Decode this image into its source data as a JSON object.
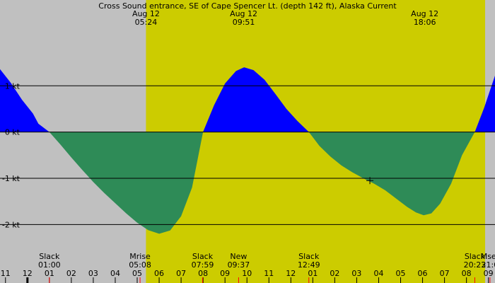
{
  "chart_data": {
    "type": "area",
    "title": "Cross Sound entrance, SE of Cape Spencer Lt. (depth 142 ft), Alaska Current",
    "colors": {
      "night": "#c0c0c0",
      "day": "#cccc00",
      "flood": "#0000ff",
      "ebb": "#2e8b57",
      "grid": "#000000",
      "tick_marker": "#ff0000",
      "midnight_marker": "#000000"
    },
    "xlim": [
      10.75,
      33.3
    ],
    "ylim": [
      -2.5,
      2.55
    ],
    "daylight": {
      "start": 17.4,
      "end": 32.85
    },
    "y_ticks": [
      {
        "value": 1,
        "label": "1 kt"
      },
      {
        "value": 0,
        "label": "0 kt"
      },
      {
        "value": -1,
        "label": "-1 kt"
      },
      {
        "value": -2,
        "label": "-2 kt"
      }
    ],
    "x_tick_labels": [
      {
        "hour": 11,
        "label": "11"
      },
      {
        "hour": 12,
        "label": "12"
      },
      {
        "hour": 13,
        "label": "01"
      },
      {
        "hour": 14,
        "label": "02"
      },
      {
        "hour": 15,
        "label": "03"
      },
      {
        "hour": 16,
        "label": "04"
      },
      {
        "hour": 17,
        "label": "05"
      },
      {
        "hour": 18,
        "label": "06"
      },
      {
        "hour": 19,
        "label": "07"
      },
      {
        "hour": 20,
        "label": "08"
      },
      {
        "hour": 21,
        "label": "09"
      },
      {
        "hour": 22,
        "label": "10"
      },
      {
        "hour": 23,
        "label": "11"
      },
      {
        "hour": 24,
        "label": "12"
      },
      {
        "hour": 25,
        "label": "01"
      },
      {
        "hour": 26,
        "label": "02"
      },
      {
        "hour": 27,
        "label": "03"
      },
      {
        "hour": 28,
        "label": "04"
      },
      {
        "hour": 29,
        "label": "05"
      },
      {
        "hour": 30,
        "label": "06"
      },
      {
        "hour": 31,
        "label": "07"
      },
      {
        "hour": 32,
        "label": "08"
      },
      {
        "hour": 33,
        "label": "09"
      }
    ],
    "top_annotations": [
      {
        "hour": 17.4,
        "line1": "Aug 12",
        "line2": "05:24"
      },
      {
        "hour": 21.85,
        "line1": "Aug 12",
        "line2": "09:51"
      },
      {
        "hour": 30.1,
        "line1": "Aug 12",
        "line2": "18:06"
      }
    ],
    "bottom_annotations": [
      {
        "hour": 13.0,
        "line1": "Slack",
        "line2": "01:00"
      },
      {
        "hour": 17.13,
        "line1": "Mrise",
        "line2": "05:08"
      },
      {
        "hour": 19.98,
        "line1": "Slack",
        "line2": "07:59"
      },
      {
        "hour": 21.62,
        "line1": "New",
        "line2": "09:37"
      },
      {
        "hour": 24.82,
        "line1": "Slack",
        "line2": "12:49"
      },
      {
        "hour": 32.38,
        "line1": "Slack",
        "line2": "20:23"
      },
      {
        "hour": 33.07,
        "line1": "Mset",
        "line2": "21:0"
      }
    ],
    "series": [
      {
        "points": [
          [
            10.75,
            1.36
          ],
          [
            11.25,
            1.06
          ],
          [
            11.75,
            0.7
          ],
          [
            12.25,
            0.4
          ],
          [
            12.5,
            0.18
          ],
          [
            13.0,
            0.0
          ],
          [
            13.5,
            -0.27
          ],
          [
            14.0,
            -0.55
          ],
          [
            14.5,
            -0.82
          ],
          [
            15.0,
            -1.08
          ],
          [
            15.5,
            -1.32
          ],
          [
            16.0,
            -1.54
          ],
          [
            16.5,
            -1.76
          ],
          [
            17.0,
            -1.96
          ],
          [
            17.5,
            -2.12
          ],
          [
            18.0,
            -2.2
          ],
          [
            18.5,
            -2.13
          ],
          [
            19.0,
            -1.82
          ],
          [
            19.5,
            -1.2
          ],
          [
            20.0,
            0.0
          ],
          [
            20.5,
            0.58
          ],
          [
            21.0,
            1.05
          ],
          [
            21.5,
            1.32
          ],
          [
            21.87,
            1.4
          ],
          [
            22.3,
            1.34
          ],
          [
            22.8,
            1.13
          ],
          [
            23.3,
            0.82
          ],
          [
            23.8,
            0.5
          ],
          [
            24.3,
            0.24
          ],
          [
            24.82,
            0.0
          ],
          [
            25.3,
            -0.3
          ],
          [
            25.8,
            -0.53
          ],
          [
            26.3,
            -0.72
          ],
          [
            26.8,
            -0.87
          ],
          [
            27.3,
            -1.0
          ],
          [
            27.8,
            -1.12
          ],
          [
            28.3,
            -1.26
          ],
          [
            28.8,
            -1.44
          ],
          [
            29.3,
            -1.62
          ],
          [
            29.7,
            -1.74
          ],
          [
            30.05,
            -1.8
          ],
          [
            30.4,
            -1.76
          ],
          [
            30.8,
            -1.55
          ],
          [
            31.3,
            -1.12
          ],
          [
            31.8,
            -0.5
          ],
          [
            32.38,
            0.0
          ],
          [
            32.8,
            0.52
          ],
          [
            33.3,
            1.22
          ]
        ]
      }
    ],
    "cursor": {
      "hour": 27.6,
      "value": -1.05
    }
  }
}
